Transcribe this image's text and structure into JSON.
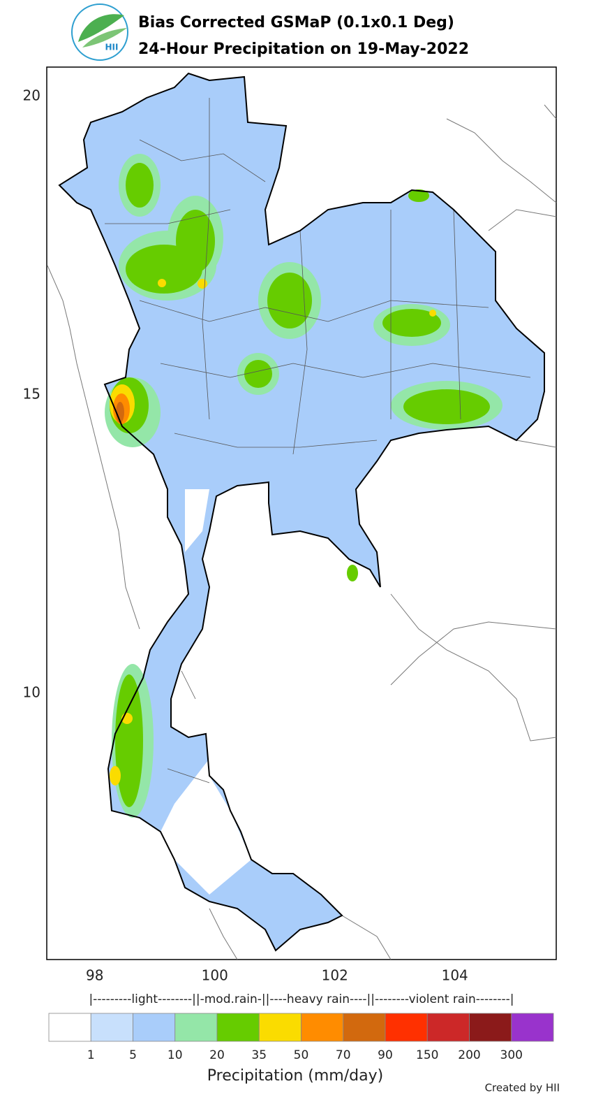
{
  "header": {
    "logo_text": "HII",
    "title": "Bias Corrected GSMaP (0.1x0.1 Deg)",
    "subtitle": "24-Hour Precipitation on 19-May-2022"
  },
  "map": {
    "xlim": [
      97.2,
      105.69
    ],
    "ylim": [
      5.54,
      20.49
    ],
    "xticks": [
      98,
      100,
      102,
      104
    ],
    "yticks": [
      20,
      15,
      10
    ]
  },
  "colorbar": {
    "categories": "|---------light--------||-mod.rain-||----heavy rain----||--------violent rain--------|",
    "colors": [
      "#ffffff",
      "#c8e0fc",
      "#a9cdfa",
      "#94e6a8",
      "#66cc00",
      "#fadc00",
      "#ff8c00",
      "#d2690e",
      "#ff3000",
      "#cc2828",
      "#8b1a1a",
      "#9933cc"
    ],
    "ticks": [
      1,
      5,
      10,
      20,
      35,
      50,
      70,
      90,
      150,
      200,
      300
    ],
    "label": "Precipitation (mm/day)"
  },
  "footer": {
    "credit": "Created by HII"
  }
}
